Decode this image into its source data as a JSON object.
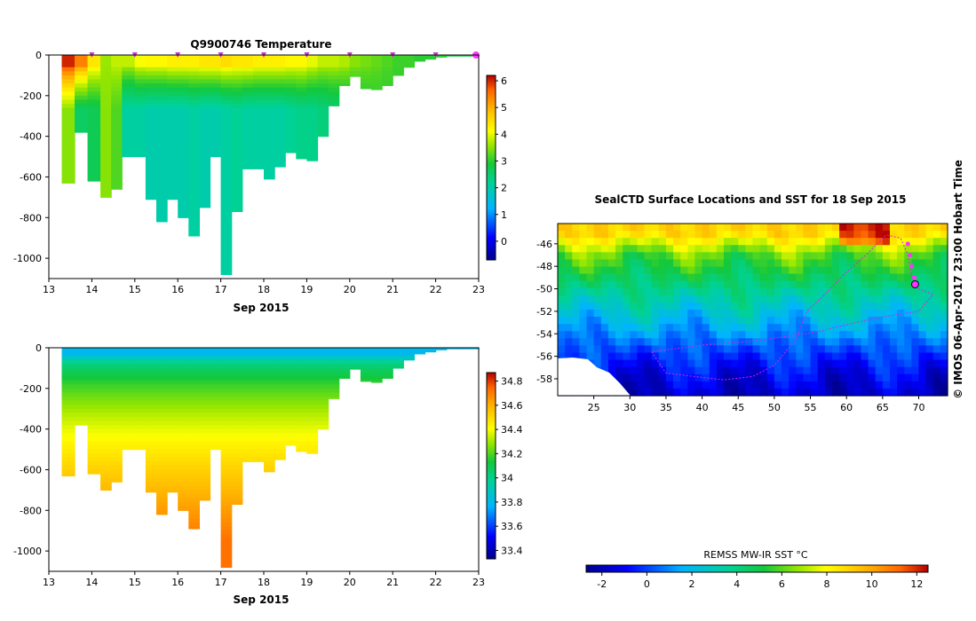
{
  "chart_data": [
    {
      "type": "heatmap",
      "title": "Q9900746  Temperature",
      "xlabel": "Sep 2015",
      "ylabel": "",
      "xlim": [
        13,
        23
      ],
      "ylim": [
        -1100,
        0
      ],
      "x_ticks": [
        "13",
        "14",
        "15",
        "16",
        "17",
        "18",
        "19",
        "20",
        "21",
        "22",
        "23"
      ],
      "y_ticks": [
        "0",
        "-200",
        "-400",
        "-600",
        "-800",
        "-1000"
      ],
      "colorbar": {
        "min": -0.7,
        "max": 6.2,
        "ticks": [
          "0",
          "1",
          "2",
          "3",
          "4",
          "5",
          "6"
        ]
      },
      "profile_times": [
        13.3,
        13.6,
        13.9,
        14.2,
        14.45,
        14.7,
        15.0,
        15.25,
        15.5,
        15.75,
        16.0,
        16.25,
        16.5,
        16.75,
        17.0,
        17.25,
        17.5,
        17.75,
        18.0,
        18.25,
        18.5,
        18.75,
        19.0,
        19.25,
        19.5,
        19.75,
        20.0,
        20.25,
        20.5,
        20.75,
        21.0,
        21.25,
        21.5,
        21.75,
        22.0,
        22.25,
        22.5,
        22.75,
        23.0
      ],
      "profile_max_depth": [
        630,
        380,
        620,
        700,
        660,
        500,
        500,
        710,
        820,
        710,
        800,
        890,
        750,
        500,
        1080,
        770,
        560,
        560,
        610,
        550,
        480,
        510,
        520,
        400,
        250,
        150,
        105,
        165,
        170,
        150,
        100,
        60,
        30,
        20,
        10,
        5,
        5,
        5,
        5
      ],
      "surface_values": [
        6.0,
        5.4,
        4.4,
        3.6,
        3.8,
        3.8,
        4.1,
        4.2,
        4.2,
        4.3,
        4.3,
        4.3,
        4.4,
        4.4,
        4.5,
        4.4,
        4.4,
        4.3,
        4.3,
        4.3,
        4.2,
        4.2,
        4.0,
        3.8,
        3.8,
        3.7,
        3.5,
        3.4,
        3.3,
        3.2,
        3.1,
        3.1,
        3.0,
        3.0,
        3.0,
        2.8,
        2.7,
        2.7,
        2.7
      ],
      "deep_values": [
        3.5,
        2.6,
        2.7,
        3.5,
        3.2,
        2.1,
        2.1,
        2.0,
        2.0,
        2.0,
        2.0,
        2.1,
        2.0,
        2.0,
        2.1,
        2.2,
        2.1,
        2.1,
        2.1,
        2.1,
        2.2,
        2.3,
        2.3,
        2.4,
        2.5,
        2.6,
        2.7,
        2.9,
        3.0,
        3.0,
        3.0,
        3.0,
        3.0,
        3.0,
        3.0,
        3.0,
        3.0,
        3.0,
        3.0
      ]
    },
    {
      "type": "heatmap",
      "title": "",
      "xlabel": "Sep 2015",
      "ylabel": "",
      "xlim": [
        13,
        23
      ],
      "ylim": [
        -1100,
        0
      ],
      "x_ticks": [
        "13",
        "14",
        "15",
        "16",
        "17",
        "18",
        "19",
        "20",
        "21",
        "22",
        "23"
      ],
      "y_ticks": [
        "0",
        "-200",
        "-400",
        "-600",
        "-800",
        "-1000"
      ],
      "colorbar": {
        "min": 33.33,
        "max": 34.87,
        "ticks": [
          "33.4",
          "33.6",
          "33.8",
          "34",
          "34.2",
          "34.4",
          "34.6",
          "34.8"
        ]
      },
      "surface_value": 33.8,
      "halocline_depth": 200,
      "deep_value": 34.72
    },
    {
      "type": "heatmap",
      "title": "SealCTD Surface Locations and SST for 18 Sep 2015",
      "xlabel": "",
      "ylabel": "",
      "xlim": [
        20,
        74
      ],
      "ylim": [
        -59.5,
        -44.2
      ],
      "x_ticks": [
        "25",
        "30",
        "35",
        "40",
        "45",
        "50",
        "55",
        "60",
        "65",
        "70"
      ],
      "y_ticks": [
        "-46",
        "-48",
        "-50",
        "-52",
        "-54",
        "-56",
        "-58"
      ],
      "colorbar_label": "REMSS MW-IR SST °C",
      "colorbar": {
        "min": -2.7,
        "max": 12.5,
        "ticks": [
          "-2",
          "0",
          "2",
          "4",
          "6",
          "8",
          "10",
          "12"
        ]
      },
      "sst_by_latitude": [
        {
          "lat": -45.0,
          "sst": 9.0
        },
        {
          "lat": -47.0,
          "sst": 6.0
        },
        {
          "lat": -49.0,
          "sst": 4.6
        },
        {
          "lat": -51.0,
          "sst": 3.2
        },
        {
          "lat": -53.0,
          "sst": 1.8
        },
        {
          "lat": -55.0,
          "sst": 0.4
        },
        {
          "lat": -57.0,
          "sst": -0.8
        },
        {
          "lat": -59.0,
          "sst": -1.6
        }
      ],
      "track": [
        {
          "lon": 33.0,
          "lat": -55.6
        },
        {
          "lon": 35.0,
          "lat": -57.5
        },
        {
          "lon": 39.0,
          "lat": -57.8
        },
        {
          "lon": 43.0,
          "lat": -58.1
        },
        {
          "lon": 47.0,
          "lat": -57.8
        },
        {
          "lon": 50.0,
          "lat": -56.8
        },
        {
          "lon": 53.0,
          "lat": -54.5
        },
        {
          "lon": 54.5,
          "lat": -52.0
        },
        {
          "lon": 57.0,
          "lat": -50.5
        },
        {
          "lon": 60.0,
          "lat": -48.5
        },
        {
          "lon": 63.0,
          "lat": -46.8
        },
        {
          "lon": 65.5,
          "lat": -45.2
        },
        {
          "lon": 67.5,
          "lat": -45.5
        },
        {
          "lon": 68.5,
          "lat": -47.0
        },
        {
          "lon": 69.0,
          "lat": -48.8
        },
        {
          "lon": 70.0,
          "lat": -50.0
        },
        {
          "lon": 72.0,
          "lat": -50.5
        },
        {
          "lon": 70.0,
          "lat": -52.0
        },
        {
          "lon": 64.0,
          "lat": -52.6
        },
        {
          "lon": 56.0,
          "lat": -53.8
        },
        {
          "lon": 48.0,
          "lat": -54.6
        },
        {
          "lon": 40.0,
          "lat": -55.0
        },
        {
          "lon": 33.0,
          "lat": -55.6
        }
      ],
      "surface_locations": [
        {
          "lon": 68.5,
          "lat": -46.0
        },
        {
          "lon": 68.8,
          "lat": -47.0
        },
        {
          "lon": 69.0,
          "lat": -48.0
        },
        {
          "lon": 69.4,
          "lat": -49.0
        }
      ],
      "current_location": {
        "lon": 69.5,
        "lat": -49.6
      }
    }
  ],
  "credit": "© IMOS 06-Apr-2017 23:00 Hobart Time"
}
